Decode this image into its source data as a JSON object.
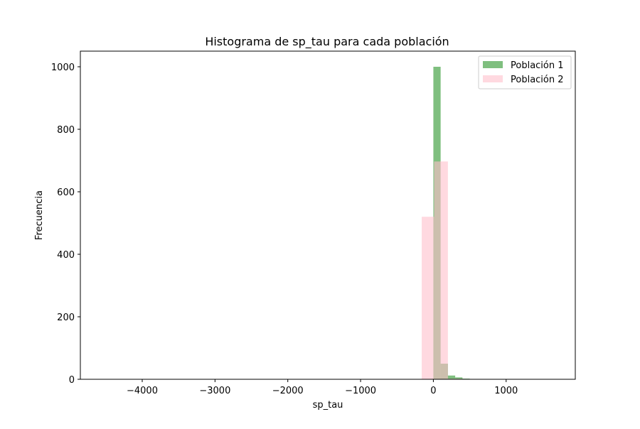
{
  "chart_data": {
    "type": "bar",
    "title": "Histograma de sp_tau para cada población",
    "xlabel": "sp_tau",
    "ylabel": "Frecuencia",
    "xlim": [
      -4850,
      1950
    ],
    "ylim": [
      0,
      1050
    ],
    "xticks": [
      -4000,
      -3000,
      -2000,
      -1000,
      0,
      1000
    ],
    "xtick_labels": [
      "−4000",
      "−3000",
      "−2000",
      "−1000",
      "0",
      "1000"
    ],
    "yticks": [
      0,
      200,
      400,
      600,
      800,
      1000
    ],
    "ytick_labels": [
      "0",
      "200",
      "400",
      "600",
      "800",
      "1000"
    ],
    "grid": false,
    "legend": "top-right",
    "series": [
      {
        "name": "Población 1",
        "color": "#008000",
        "alpha": 0.5,
        "bins": [
          {
            "x0": 0,
            "x1": 100,
            "count": 1000
          },
          {
            "x0": 100,
            "x1": 200,
            "count": 50
          },
          {
            "x0": 200,
            "x1": 300,
            "count": 12
          },
          {
            "x0": 300,
            "x1": 400,
            "count": 6
          },
          {
            "x0": 400,
            "x1": 500,
            "count": 2
          },
          {
            "x0": 500,
            "x1": 600,
            "count": 1
          },
          {
            "x0": 700,
            "x1": 800,
            "count": 1
          },
          {
            "x0": 800,
            "x1": 900,
            "count": 1
          }
        ]
      },
      {
        "name": "Población 2",
        "color": "#ffc0cb",
        "alpha": 0.6,
        "bins": [
          {
            "x0": -160,
            "x1": 10,
            "count": 520
          },
          {
            "x0": 10,
            "x1": 200,
            "count": 697
          },
          {
            "x0": 200,
            "x1": 390,
            "count": 2
          }
        ]
      }
    ]
  }
}
